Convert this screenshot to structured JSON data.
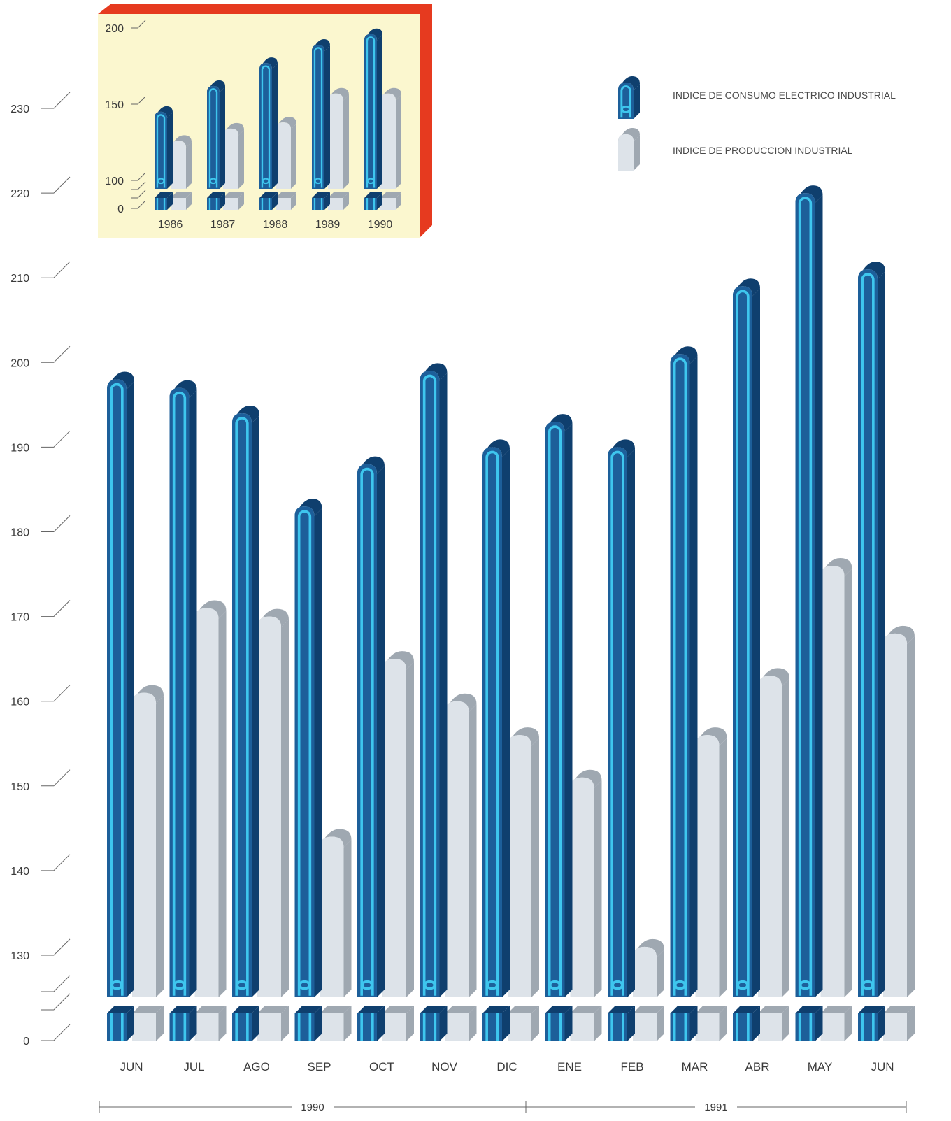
{
  "chart_data": [
    {
      "type": "bar",
      "categories": [
        "JUN",
        "JUL",
        "AGO",
        "SEP",
        "OCT",
        "NOV",
        "DIC",
        "ENE",
        "FEB",
        "MAR",
        "ABR",
        "MAY",
        "JUN"
      ],
      "year_groups": [
        {
          "label": "1990",
          "from": 0,
          "to": 6
        },
        {
          "label": "1991",
          "from": 7,
          "to": 12
        }
      ],
      "series": [
        {
          "name": "INDICE DE CONSUMO ELECTRICO INDUSTRIAL",
          "values": [
            198,
            197,
            194,
            183,
            188,
            199,
            190,
            193,
            190,
            201,
            209,
            220,
            211
          ]
        },
        {
          "name": "INDICE DE PRODUCCION INDUSTRIAL",
          "values": [
            161,
            171,
            170,
            144,
            165,
            160,
            156,
            151,
            131,
            156,
            163,
            176,
            168
          ]
        }
      ],
      "yticks": [
        0,
        130,
        140,
        150,
        160,
        170,
        180,
        190,
        200,
        210,
        220,
        230
      ],
      "ylim": [
        0,
        235
      ],
      "axis_break": true,
      "legend_position": "top-right"
    },
    {
      "type": "bar",
      "categories": [
        "1986",
        "1987",
        "1988",
        "1989",
        "1990"
      ],
      "series": [
        {
          "name": "INDICE DE CONSUMO ELECTRICO INDUSTRIAL",
          "values": [
            145,
            162,
            177,
            189,
            196
          ]
        },
        {
          "name": "INDICE DE PRODUCCION INDUSTRIAL",
          "values": [
            126,
            134,
            138,
            157,
            157
          ]
        }
      ],
      "yticks": [
        0,
        100,
        150,
        200
      ],
      "ylim": [
        0,
        200
      ],
      "axis_break": true
    }
  ],
  "colors": {
    "electric_front": "#1d5f9a",
    "electric_side": "#0f3f6e",
    "electric_stripe": "#3ec6ee",
    "production_front": "#dde3e9",
    "production_side": "#9fa8b1",
    "inset_background": "#fbf7cf",
    "inset_border": "#e63a1f"
  }
}
